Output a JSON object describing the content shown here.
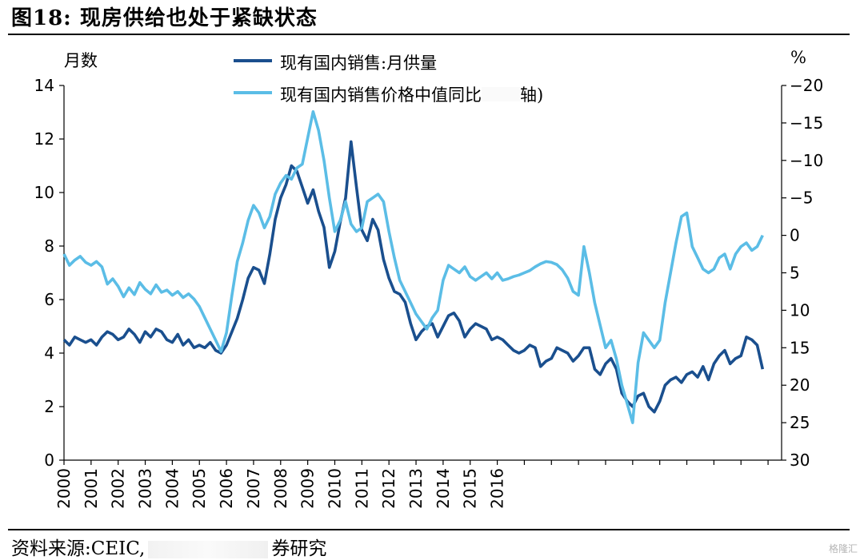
{
  "title": "图18: 现房供给也处于紧缺状态",
  "source_prefix": "资料来源:CEIC,",
  "source_suffix": "券研究",
  "watermark": "格隆汇",
  "colors": {
    "supply": "#1a4f8e",
    "price": "#5bbde6"
  },
  "chart_data": {
    "type": "line",
    "left_axis": {
      "label": "月数",
      "ylim": [
        0,
        14
      ],
      "ticks": [
        0,
        2,
        4,
        6,
        8,
        10,
        12,
        14
      ]
    },
    "right_axis": {
      "label": "%",
      "ylim": [
        30,
        -20
      ],
      "ticks": [
        -20,
        -15,
        -10,
        -5,
        0,
        5,
        10,
        15,
        20,
        25,
        30
      ],
      "reversed": true
    },
    "x_ticks": [
      "2000",
      "2001",
      "2002",
      "2003",
      "2004",
      "2005",
      "2006",
      "2007",
      "2008",
      "2009",
      "2010",
      "2011",
      "2012",
      "2013",
      "2014",
      "2015",
      "2016"
    ],
    "x_range": [
      2000,
      2026.5
    ],
    "series": [
      {
        "name": "现有国内销售:月供量",
        "axis": "left",
        "points": [
          [
            2000.0,
            4.5
          ],
          [
            2000.2,
            4.3
          ],
          [
            2000.4,
            4.6
          ],
          [
            2000.6,
            4.5
          ],
          [
            2000.8,
            4.4
          ],
          [
            2001.0,
            4.5
          ],
          [
            2001.2,
            4.3
          ],
          [
            2001.4,
            4.6
          ],
          [
            2001.6,
            4.8
          ],
          [
            2001.8,
            4.7
          ],
          [
            2002.0,
            4.5
          ],
          [
            2002.2,
            4.6
          ],
          [
            2002.4,
            4.9
          ],
          [
            2002.6,
            4.7
          ],
          [
            2002.8,
            4.4
          ],
          [
            2003.0,
            4.8
          ],
          [
            2003.2,
            4.6
          ],
          [
            2003.4,
            4.9
          ],
          [
            2003.6,
            4.8
          ],
          [
            2003.8,
            4.5
          ],
          [
            2004.0,
            4.4
          ],
          [
            2004.2,
            4.7
          ],
          [
            2004.4,
            4.3
          ],
          [
            2004.6,
            4.5
          ],
          [
            2004.8,
            4.2
          ],
          [
            2005.0,
            4.3
          ],
          [
            2005.2,
            4.2
          ],
          [
            2005.4,
            4.4
          ],
          [
            2005.6,
            4.1
          ],
          [
            2005.8,
            4.0
          ],
          [
            2006.0,
            4.3
          ],
          [
            2006.2,
            4.8
          ],
          [
            2006.4,
            5.3
          ],
          [
            2006.6,
            6.0
          ],
          [
            2006.8,
            6.8
          ],
          [
            2007.0,
            7.2
          ],
          [
            2007.2,
            7.1
          ],
          [
            2007.4,
            6.6
          ],
          [
            2007.6,
            7.7
          ],
          [
            2007.8,
            9.0
          ],
          [
            2008.0,
            9.8
          ],
          [
            2008.2,
            10.3
          ],
          [
            2008.4,
            11.0
          ],
          [
            2008.6,
            10.8
          ],
          [
            2008.8,
            10.2
          ],
          [
            2009.0,
            9.6
          ],
          [
            2009.2,
            10.1
          ],
          [
            2009.4,
            9.3
          ],
          [
            2009.6,
            8.7
          ],
          [
            2009.8,
            7.2
          ],
          [
            2010.0,
            7.8
          ],
          [
            2010.2,
            8.9
          ],
          [
            2010.4,
            9.8
          ],
          [
            2010.6,
            11.9
          ],
          [
            2010.8,
            10.2
          ],
          [
            2011.0,
            8.6
          ],
          [
            2011.2,
            8.2
          ],
          [
            2011.4,
            9.0
          ],
          [
            2011.6,
            8.6
          ],
          [
            2011.8,
            7.5
          ],
          [
            2012.0,
            6.8
          ],
          [
            2012.2,
            6.3
          ],
          [
            2012.4,
            6.2
          ],
          [
            2012.6,
            5.9
          ],
          [
            2012.8,
            5.1
          ],
          [
            2013.0,
            4.5
          ],
          [
            2013.2,
            4.8
          ],
          [
            2013.4,
            5.0
          ],
          [
            2013.6,
            5.1
          ],
          [
            2013.8,
            4.6
          ],
          [
            2014.0,
            5.0
          ],
          [
            2014.2,
            5.4
          ],
          [
            2014.4,
            5.5
          ],
          [
            2014.6,
            5.2
          ],
          [
            2014.8,
            4.6
          ],
          [
            2015.0,
            4.9
          ],
          [
            2015.2,
            5.1
          ],
          [
            2015.4,
            5.0
          ],
          [
            2015.6,
            4.9
          ],
          [
            2015.8,
            4.5
          ],
          [
            2016.0,
            4.6
          ],
          [
            2016.2,
            4.5
          ],
          [
            2016.4,
            4.3
          ],
          [
            2016.6,
            4.1
          ],
          [
            2016.8,
            4.0
          ],
          [
            2017.0,
            4.1
          ],
          [
            2017.2,
            4.3
          ],
          [
            2017.4,
            4.2
          ],
          [
            2017.6,
            3.5
          ],
          [
            2017.8,
            3.7
          ],
          [
            2018.0,
            3.8
          ],
          [
            2018.2,
            4.2
          ],
          [
            2018.4,
            4.1
          ],
          [
            2018.6,
            4.0
          ],
          [
            2018.8,
            3.7
          ],
          [
            2019.0,
            3.9
          ],
          [
            2019.2,
            4.2
          ],
          [
            2019.4,
            4.2
          ],
          [
            2019.6,
            3.4
          ],
          [
            2019.8,
            3.2
          ],
          [
            2020.0,
            3.6
          ],
          [
            2020.2,
            3.8
          ],
          [
            2020.4,
            3.4
          ],
          [
            2020.6,
            2.5
          ],
          [
            2020.8,
            2.2
          ],
          [
            2021.0,
            2.0
          ],
          [
            2021.2,
            2.4
          ],
          [
            2021.4,
            2.5
          ],
          [
            2021.6,
            2.0
          ],
          [
            2021.8,
            1.8
          ],
          [
            2022.0,
            2.2
          ],
          [
            2022.2,
            2.8
          ],
          [
            2022.4,
            3.0
          ],
          [
            2022.6,
            3.1
          ],
          [
            2022.8,
            2.9
          ],
          [
            2023.0,
            3.2
          ],
          [
            2023.2,
            3.3
          ],
          [
            2023.4,
            3.1
          ],
          [
            2023.6,
            3.5
          ],
          [
            2023.8,
            3.0
          ],
          [
            2024.0,
            3.6
          ],
          [
            2024.2,
            3.9
          ],
          [
            2024.4,
            4.1
          ],
          [
            2024.6,
            3.6
          ],
          [
            2024.8,
            3.8
          ],
          [
            2025.0,
            3.9
          ],
          [
            2025.2,
            4.6
          ],
          [
            2025.4,
            4.5
          ],
          [
            2025.6,
            4.3
          ],
          [
            2025.8,
            3.4
          ]
        ]
      },
      {
        "name": "现有国内销售价格中值同比",
        "axis": "right",
        "points": [
          [
            2000.0,
            2.5
          ],
          [
            2000.2,
            4.0
          ],
          [
            2000.4,
            3.3
          ],
          [
            2000.6,
            2.8
          ],
          [
            2000.8,
            3.6
          ],
          [
            2001.0,
            4.0
          ],
          [
            2001.2,
            3.5
          ],
          [
            2001.4,
            4.2
          ],
          [
            2001.6,
            6.5
          ],
          [
            2001.8,
            5.8
          ],
          [
            2002.0,
            6.8
          ],
          [
            2002.2,
            8.2
          ],
          [
            2002.4,
            7.0
          ],
          [
            2002.6,
            7.9
          ],
          [
            2002.8,
            6.3
          ],
          [
            2003.0,
            7.2
          ],
          [
            2003.2,
            7.8
          ],
          [
            2003.4,
            6.6
          ],
          [
            2003.6,
            7.6
          ],
          [
            2003.8,
            7.3
          ],
          [
            2004.0,
            8.0
          ],
          [
            2004.2,
            7.5
          ],
          [
            2004.4,
            8.3
          ],
          [
            2004.6,
            7.8
          ],
          [
            2004.8,
            8.5
          ],
          [
            2005.0,
            9.5
          ],
          [
            2005.2,
            11.0
          ],
          [
            2005.4,
            12.5
          ],
          [
            2005.6,
            14.0
          ],
          [
            2005.8,
            15.5
          ],
          [
            2006.0,
            13.0
          ],
          [
            2006.2,
            8.0
          ],
          [
            2006.4,
            3.5
          ],
          [
            2006.6,
            1.0
          ],
          [
            2006.8,
            -2.0
          ],
          [
            2007.0,
            -4.0
          ],
          [
            2007.2,
            -3.0
          ],
          [
            2007.4,
            -1.0
          ],
          [
            2007.6,
            -2.5
          ],
          [
            2007.8,
            -5.5
          ],
          [
            2008.0,
            -7.0
          ],
          [
            2008.2,
            -8.0
          ],
          [
            2008.4,
            -7.5
          ],
          [
            2008.6,
            -9.0
          ],
          [
            2008.8,
            -9.5
          ],
          [
            2009.0,
            -13.0
          ],
          [
            2009.2,
            -16.5
          ],
          [
            2009.4,
            -14.0
          ],
          [
            2009.6,
            -10.0
          ],
          [
            2009.8,
            -5.0
          ],
          [
            2010.0,
            -0.5
          ],
          [
            2010.2,
            -2.0
          ],
          [
            2010.4,
            -4.5
          ],
          [
            2010.6,
            -1.5
          ],
          [
            2010.8,
            -0.5
          ],
          [
            2011.0,
            -1.0
          ],
          [
            2011.2,
            -4.5
          ],
          [
            2011.4,
            -5.0
          ],
          [
            2011.6,
            -5.5
          ],
          [
            2011.8,
            -4.5
          ],
          [
            2012.0,
            -0.5
          ],
          [
            2012.2,
            3.0
          ],
          [
            2012.4,
            6.0
          ],
          [
            2012.6,
            7.5
          ],
          [
            2012.8,
            9.0
          ],
          [
            2013.0,
            10.5
          ],
          [
            2013.2,
            11.5
          ],
          [
            2013.4,
            12.5
          ],
          [
            2013.6,
            11.0
          ],
          [
            2013.8,
            10.0
          ],
          [
            2014.0,
            6.0
          ],
          [
            2014.2,
            4.0
          ],
          [
            2014.4,
            4.5
          ],
          [
            2014.6,
            5.0
          ],
          [
            2014.8,
            4.2
          ],
          [
            2015.0,
            5.5
          ],
          [
            2015.2,
            6.0
          ],
          [
            2015.4,
            5.5
          ],
          [
            2015.6,
            5.0
          ],
          [
            2015.8,
            5.8
          ],
          [
            2016.0,
            5.0
          ],
          [
            2016.2,
            6.0
          ],
          [
            2016.4,
            5.8
          ],
          [
            2016.6,
            5.5
          ],
          [
            2016.8,
            5.3
          ],
          [
            2017.0,
            5.0
          ],
          [
            2017.2,
            4.7
          ],
          [
            2017.4,
            4.2
          ],
          [
            2017.6,
            3.8
          ],
          [
            2017.8,
            3.5
          ],
          [
            2018.0,
            3.6
          ],
          [
            2018.2,
            3.9
          ],
          [
            2018.4,
            4.6
          ],
          [
            2018.6,
            5.7
          ],
          [
            2018.8,
            7.5
          ],
          [
            2019.0,
            8.0
          ],
          [
            2019.2,
            1.5
          ],
          [
            2019.4,
            5.0
          ],
          [
            2019.6,
            9.0
          ],
          [
            2019.8,
            12.0
          ],
          [
            2020.0,
            15.0
          ],
          [
            2020.2,
            14.0
          ],
          [
            2020.4,
            16.5
          ],
          [
            2020.6,
            20.0
          ],
          [
            2020.8,
            22.5
          ],
          [
            2021.0,
            25.0
          ],
          [
            2021.2,
            17.0
          ],
          [
            2021.4,
            13.0
          ],
          [
            2021.6,
            14.0
          ],
          [
            2021.8,
            15.0
          ],
          [
            2022.0,
            14.0
          ],
          [
            2022.2,
            9.0
          ],
          [
            2022.4,
            5.0
          ],
          [
            2022.6,
            1.0
          ],
          [
            2022.8,
            -2.5
          ],
          [
            2023.0,
            -3.0
          ],
          [
            2023.2,
            1.5
          ],
          [
            2023.4,
            3.0
          ],
          [
            2023.6,
            4.5
          ],
          [
            2023.8,
            5.0
          ],
          [
            2024.0,
            4.5
          ],
          [
            2024.2,
            3.0
          ],
          [
            2024.4,
            2.5
          ],
          [
            2024.6,
            4.5
          ],
          [
            2024.8,
            2.5
          ],
          [
            2025.0,
            1.5
          ],
          [
            2025.2,
            1.0
          ],
          [
            2025.4,
            2.0
          ],
          [
            2025.6,
            1.5
          ],
          [
            2025.8,
            0.0
          ]
        ]
      }
    ]
  }
}
